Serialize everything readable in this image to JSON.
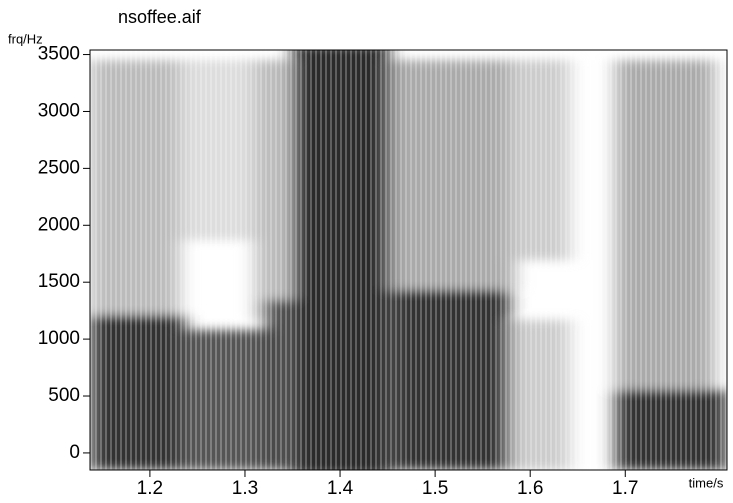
{
  "chart_data": {
    "type": "spectrogram",
    "title": "nsoffee.aif",
    "y_label": "frq/Hz",
    "x_label": "time/s",
    "xlim": [
      1.137,
      1.807
    ],
    "ylim": [
      -150,
      3540
    ],
    "xticks": [
      1.2,
      1.3,
      1.4,
      1.5,
      1.6,
      1.7
    ],
    "yticks": [
      0,
      500,
      1000,
      1500,
      2000,
      2500,
      3000,
      3500
    ]
  }
}
